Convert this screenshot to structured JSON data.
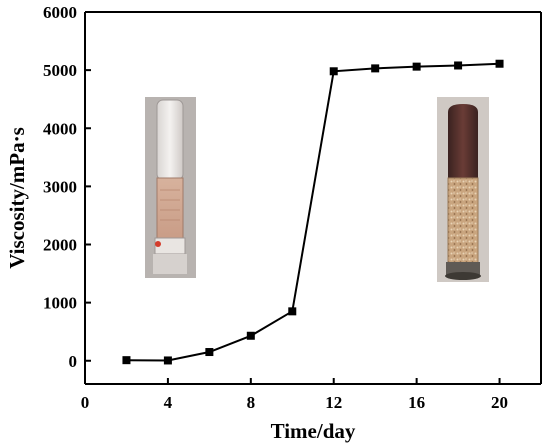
{
  "chart_data": {
    "type": "line",
    "xlabel": "Time/day",
    "ylabel": "Viscosity/mPa·s",
    "xlim": [
      0,
      22
    ],
    "ylim": [
      -400,
      6000
    ],
    "xticks": [
      0,
      4,
      8,
      12,
      16,
      20
    ],
    "yticks": [
      0,
      1000,
      2000,
      3000,
      4000,
      5000,
      6000
    ],
    "grid": false,
    "series": [
      {
        "marker": "square",
        "color": "#000000",
        "x": [
          2,
          4,
          6,
          8,
          10,
          12,
          14,
          16,
          18,
          20
        ],
        "y": [
          10,
          5,
          150,
          430,
          850,
          4980,
          5030,
          5060,
          5080,
          5110
        ]
      }
    ],
    "insets": [
      {
        "name": "tube-before-photo",
        "description_icon": "sample-tube-clear-top-icon"
      },
      {
        "name": "tube-after-photo",
        "description_icon": "sample-tube-dark-cap-icon"
      }
    ]
  }
}
